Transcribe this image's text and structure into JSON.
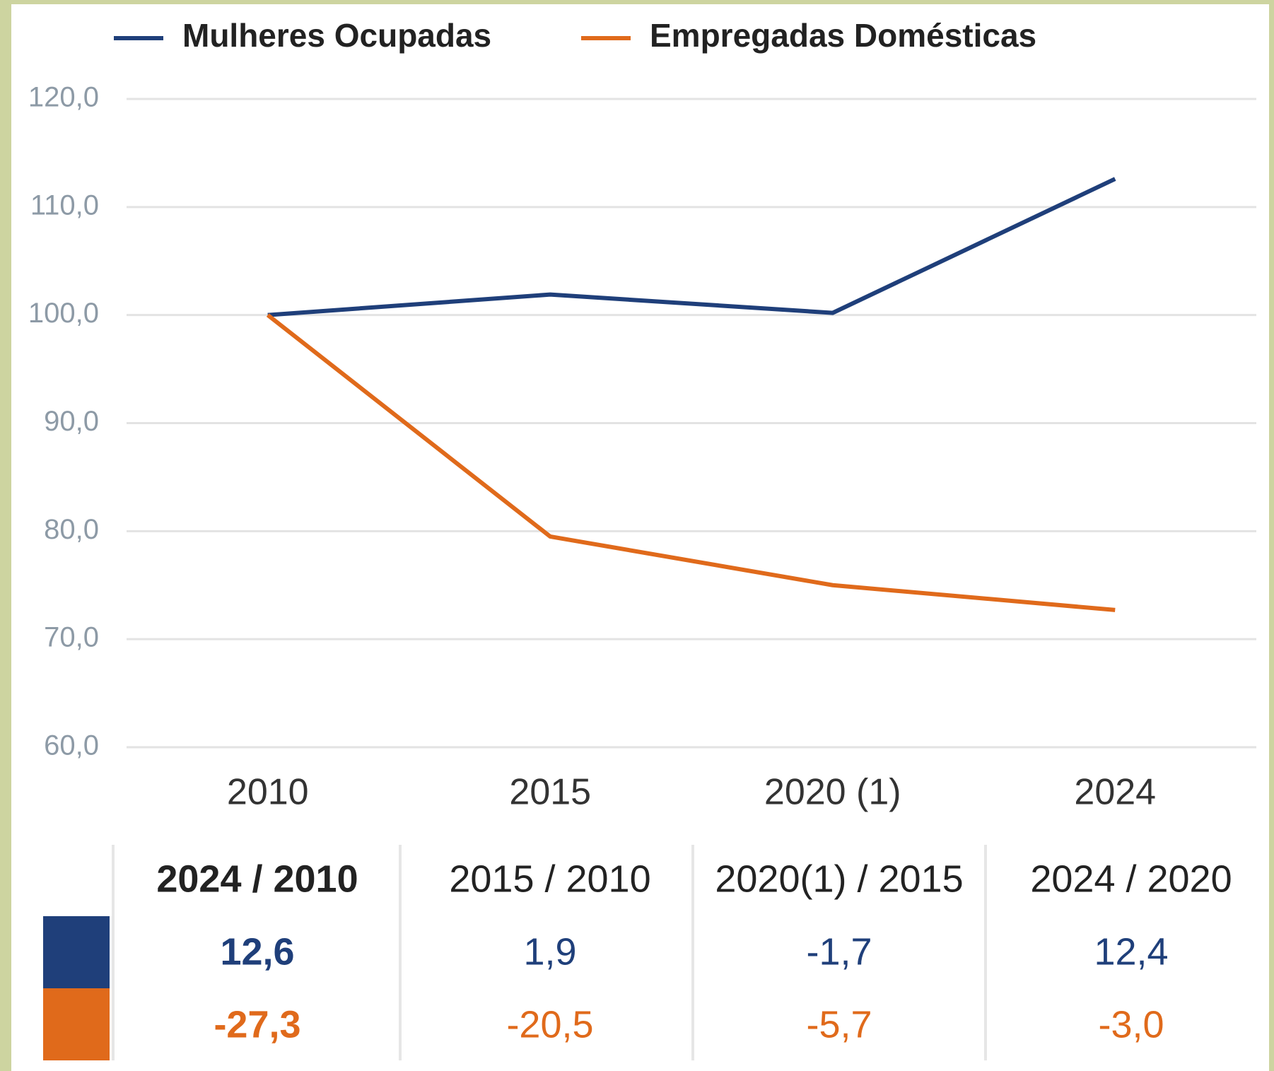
{
  "chart_data": {
    "type": "line",
    "categories": [
      "2010",
      "2015",
      "2020 (1)",
      "2024"
    ],
    "series": [
      {
        "name": "Mulheres Ocupadas",
        "color": "#1f3f7a",
        "values": [
          100,
          101.9,
          100.2,
          112.6
        ]
      },
      {
        "name": "Empregadas Domésticas",
        "color": "#e06a1b",
        "values": [
          100,
          79.5,
          75.0,
          72.7
        ]
      }
    ],
    "ylim": [
      60,
      120
    ],
    "yticks": [
      {
        "value": 60,
        "label": "60,0"
      },
      {
        "value": 70,
        "label": "70,0"
      },
      {
        "value": 80,
        "label": "80,0"
      },
      {
        "value": 90,
        "label": "90,0"
      },
      {
        "value": 100,
        "label": "100,0"
      },
      {
        "value": 110,
        "label": "110,0"
      },
      {
        "value": 120,
        "label": "120,0"
      }
    ],
    "grid": true,
    "legend": "top"
  },
  "table": {
    "headers": [
      "2024 / 2010",
      "2015 / 2010",
      "2020(1) / 2015",
      "2024 / 2020"
    ],
    "rows": [
      [
        "12,6",
        "1,9",
        "-1,7",
        "12,4"
      ],
      [
        "-27,3",
        "-20,5",
        "-5,7",
        "-3,0"
      ]
    ]
  }
}
